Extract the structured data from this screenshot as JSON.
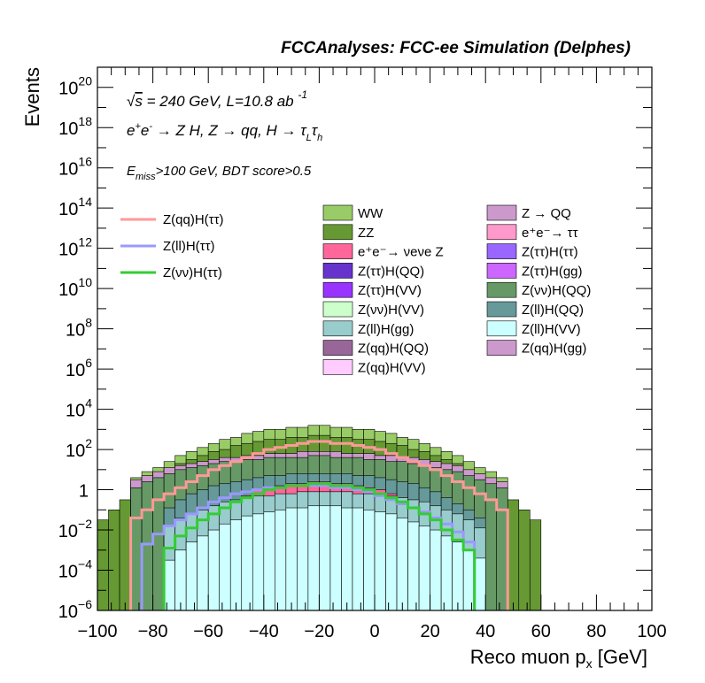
{
  "chart_data": {
    "type": "histogram",
    "title": "FCCAnalyses: FCC-ee Simulation (Delphes)",
    "xlabel": "Reco muon p_x [GeV]",
    "ylabel": "Events",
    "xlim": [
      -100,
      100
    ],
    "ylim": [
      1e-06,
      1e+21
    ],
    "yscale": "log",
    "x_ticks": [
      "−100",
      "−80",
      "−60",
      "−40",
      "−20",
      "0",
      "20",
      "40",
      "60",
      "80",
      "100"
    ],
    "y_ticks": [
      {
        "exp": -6,
        "label": "10",
        "sup": "−6"
      },
      {
        "exp": -4,
        "label": "10",
        "sup": "−4"
      },
      {
        "exp": -2,
        "label": "10",
        "sup": "−2"
      },
      {
        "exp": 0,
        "label": "1",
        "sup": ""
      },
      {
        "exp": 2,
        "label": "10",
        "sup": "2"
      },
      {
        "exp": 4,
        "label": "10",
        "sup": "4"
      },
      {
        "exp": 6,
        "label": "10",
        "sup": "6"
      },
      {
        "exp": 8,
        "label": "10",
        "sup": "8"
      },
      {
        "exp": 10,
        "label": "10",
        "sup": "10"
      },
      {
        "exp": 12,
        "label": "10",
        "sup": "12"
      },
      {
        "exp": 14,
        "label": "10",
        "sup": "14"
      },
      {
        "exp": 16,
        "label": "10",
        "sup": "16"
      },
      {
        "exp": 18,
        "label": "10",
        "sup": "18"
      },
      {
        "exp": 20,
        "label": "10",
        "sup": "20"
      }
    ],
    "annotations": {
      "energy_line": "√s = 240 GeV, L=10.8 ab⁻¹",
      "process_line": "e⁺e⁻ → Z H, Z → qq, H → τLτh",
      "cuts_line": "Emiss>100 GeV, BDT score>0.5"
    },
    "bin_edges_start": -100,
    "bin_width": 4,
    "stacked_layers_log10_top": [
      {
        "name": "Z(ll)H(VV)",
        "color": "#ccffff",
        "values": [
          null,
          null,
          null,
          null,
          null,
          null,
          -3.5,
          -3.0,
          -2.6,
          -2.3,
          -2.0,
          -1.7,
          -1.5,
          -1.3,
          -1.2,
          -1.1,
          -1.0,
          -0.9,
          -0.9,
          -0.8,
          -0.8,
          -0.8,
          -0.9,
          -0.9,
          -1.0,
          -1.1,
          -1.2,
          -1.4,
          -1.6,
          -1.8,
          -2.0,
          -2.3,
          -2.6,
          -3.0,
          -3.4,
          null,
          null,
          null,
          null,
          null,
          null,
          null,
          null,
          null,
          null,
          null,
          null,
          null,
          null,
          null
        ]
      },
      {
        "name": "Z(ll)H(gg)",
        "color": "#99cccc",
        "values": [
          null,
          null,
          null,
          null,
          null,
          null,
          -1.8,
          -1.4,
          -1.2,
          -1.0,
          -0.8,
          -0.6,
          -0.5,
          -0.4,
          -0.3,
          -0.3,
          -0.2,
          -0.2,
          -0.1,
          -0.1,
          -0.1,
          -0.1,
          -0.1,
          -0.2,
          -0.2,
          -0.3,
          -0.3,
          -0.4,
          -0.5,
          -0.6,
          -0.8,
          -1.0,
          -1.2,
          -1.5,
          -1.9,
          null,
          null,
          null,
          null,
          null,
          null,
          null,
          null,
          null,
          null,
          null,
          null,
          null,
          null,
          null
        ]
      },
      {
        "name": "e⁺e⁻→ νeνe Z",
        "color": "#ff6699",
        "values": [
          null,
          null,
          null,
          null,
          null,
          null,
          null,
          null,
          null,
          null,
          null,
          null,
          null,
          -0.3,
          0.0,
          0.1,
          0.2,
          0.3,
          0.3,
          0.4,
          0.4,
          0.3,
          0.3,
          0.2,
          0.1,
          0.0,
          -0.2,
          null,
          null,
          null,
          null,
          null,
          null,
          null,
          null,
          null,
          null,
          null,
          null,
          null,
          null,
          null,
          null,
          null,
          null,
          null,
          null,
          null,
          null,
          null
        ]
      },
      {
        "name": "Z(ll)H(QQ)",
        "color": "#669999",
        "values": [
          null,
          null,
          null,
          null,
          null,
          null,
          -0.9,
          -0.5,
          -0.2,
          0.0,
          0.2,
          0.3,
          0.4,
          0.5,
          0.6,
          0.7,
          0.7,
          0.8,
          0.8,
          0.8,
          0.8,
          0.8,
          0.8,
          0.7,
          0.7,
          0.6,
          0.5,
          0.4,
          0.3,
          0.1,
          -0.1,
          -0.4,
          -0.7,
          -1.0,
          -1.4,
          null,
          null,
          null,
          null,
          null,
          null,
          null,
          null,
          null,
          null,
          null,
          null,
          null,
          null,
          null
        ]
      },
      {
        "name": "Z(νν)H(QQ)",
        "color": "#669966",
        "values": [
          null,
          null,
          null,
          0.1,
          0.4,
          0.6,
          0.8,
          1.0,
          1.1,
          1.2,
          1.3,
          1.4,
          1.4,
          1.5,
          1.5,
          1.6,
          1.6,
          1.6,
          1.6,
          1.7,
          1.7,
          1.6,
          1.6,
          1.6,
          1.5,
          1.5,
          1.4,
          1.4,
          1.3,
          1.2,
          1.1,
          1.0,
          0.9,
          0.7,
          0.5,
          0.3,
          0.1,
          null,
          null,
          null,
          null,
          null,
          null,
          null,
          null,
          null,
          null,
          null,
          null,
          null
        ]
      },
      {
        "name": "Z(qq)H(gg)",
        "color": "#cc99cc",
        "values": [
          null,
          null,
          null,
          0.5,
          0.7,
          0.9,
          1.1,
          1.2,
          1.3,
          1.4,
          1.5,
          1.6,
          1.6,
          1.7,
          1.7,
          1.8,
          1.8,
          1.8,
          1.9,
          1.9,
          1.9,
          1.9,
          1.8,
          1.8,
          1.8,
          1.7,
          1.7,
          1.6,
          1.6,
          1.5,
          1.4,
          1.3,
          1.2,
          1.0,
          0.8,
          0.6,
          0.4,
          null,
          null,
          null,
          null,
          null,
          null,
          null,
          null,
          null,
          null,
          null,
          null,
          null
        ]
      },
      {
        "name": "ZZ",
        "color": "#669933",
        "values": [
          -1.5,
          -1.0,
          -0.5,
          0.3,
          0.6,
          0.8,
          1.0,
          1.3,
          1.5,
          1.7,
          1.9,
          2.0,
          2.2,
          2.3,
          2.4,
          2.5,
          2.5,
          2.6,
          2.6,
          2.7,
          2.7,
          2.6,
          2.6,
          2.5,
          2.5,
          2.4,
          2.3,
          2.2,
          2.0,
          1.9,
          1.7,
          1.5,
          1.3,
          1.0,
          0.8,
          0.5,
          0.2,
          -0.5,
          -1.0,
          -1.5,
          null,
          null,
          null,
          null,
          null,
          null,
          null,
          null,
          null,
          null
        ]
      },
      {
        "name": "WW",
        "color": "#99cc66",
        "values": [
          null,
          null,
          null,
          0.6,
          0.9,
          1.1,
          1.4,
          1.7,
          1.9,
          2.1,
          2.3,
          2.5,
          2.6,
          2.8,
          2.9,
          3.0,
          3.0,
          3.1,
          3.1,
          3.2,
          3.2,
          3.1,
          3.1,
          3.0,
          3.0,
          2.9,
          2.8,
          2.6,
          2.5,
          2.3,
          2.1,
          1.9,
          1.7,
          1.4,
          1.1,
          0.9,
          0.6,
          null,
          null,
          null,
          null,
          null,
          null,
          null,
          null,
          null,
          null,
          null,
          null,
          null
        ]
      }
    ],
    "signal_lines_log10": [
      {
        "name": "Z(qq)H(ττ)",
        "color": "#ff9999",
        "values": [
          null,
          null,
          null,
          -1.4,
          -1.0,
          -0.5,
          -0.2,
          0.1,
          0.4,
          0.7,
          1.0,
          1.2,
          1.4,
          1.6,
          1.8,
          2.0,
          2.1,
          2.2,
          2.3,
          2.4,
          2.4,
          2.3,
          2.3,
          2.2,
          2.1,
          2.0,
          1.8,
          1.6,
          1.4,
          1.2,
          1.0,
          0.7,
          0.4,
          0.1,
          -0.2,
          -0.5,
          -1.0,
          null,
          null,
          null,
          null,
          null,
          null,
          null,
          null,
          null,
          null,
          null,
          null,
          null
        ]
      },
      {
        "name": "Z(ll)H(ττ)",
        "color": "#9999ff",
        "values": [
          null,
          null,
          null,
          null,
          -2.7,
          -2.2,
          -1.8,
          -1.5,
          -1.2,
          -0.9,
          -0.6,
          -0.4,
          -0.2,
          -0.1,
          0.0,
          0.1,
          0.1,
          0.2,
          0.2,
          0.2,
          0.2,
          0.1,
          0.1,
          0.0,
          -0.1,
          -0.3,
          -0.5,
          -0.7,
          -0.9,
          -1.1,
          -1.4,
          -1.7,
          -2.1,
          -2.6,
          null,
          null,
          null,
          null,
          null,
          null,
          null,
          null,
          null,
          null,
          null,
          null,
          null,
          null,
          null,
          null
        ]
      },
      {
        "name": "Z(νν)H(ττ)",
        "color": "#33cc33",
        "values": [
          null,
          null,
          null,
          null,
          null,
          null,
          -2.9,
          -2.3,
          -1.9,
          -1.5,
          -1.2,
          -0.9,
          -0.6,
          -0.4,
          -0.2,
          0.0,
          0.1,
          0.2,
          0.2,
          0.3,
          0.3,
          0.2,
          0.2,
          0.1,
          0.0,
          -0.2,
          -0.4,
          -0.6,
          -0.9,
          -1.2,
          -1.5,
          -2.0,
          -2.5,
          -3.0,
          null,
          null,
          null,
          null,
          null,
          null,
          null,
          null,
          null,
          null,
          null,
          null,
          null,
          null,
          null,
          null
        ]
      }
    ],
    "legend_lines": [
      {
        "label": "Z(qq)H(ττ)",
        "color": "#ff9999"
      },
      {
        "label": "Z(ll)H(ττ)",
        "color": "#9999ff"
      },
      {
        "label": "Z(νν)H(ττ)",
        "color": "#33cc33"
      }
    ],
    "legend_col1": [
      {
        "label": "WW",
        "color": "#99cc66"
      },
      {
        "label": "ZZ",
        "color": "#669933"
      },
      {
        "label": "e⁺e⁻→ νeνe Z",
        "color": "#ff6699"
      },
      {
        "label": "Z(ττ)H(QQ)",
        "color": "#6633cc"
      },
      {
        "label": "Z(ττ)H(VV)",
        "color": "#9933ff"
      },
      {
        "label": "Z(νν)H(VV)",
        "color": "#ccffcc"
      },
      {
        "label": "Z(ll)H(gg)",
        "color": "#99cccc"
      },
      {
        "label": "Z(qq)H(QQ)",
        "color": "#996699"
      },
      {
        "label": "Z(qq)H(VV)",
        "color": "#ffccff"
      }
    ],
    "legend_col2": [
      {
        "label": "Z → QQ",
        "color": "#cc99cc"
      },
      {
        "label": "e⁺e⁻→ ττ",
        "color": "#ff99cc"
      },
      {
        "label": "Z(ττ)H(ττ)",
        "color": "#9966ff"
      },
      {
        "label": "Z(ττ)H(gg)",
        "color": "#cc66ff"
      },
      {
        "label": "Z(νν)H(QQ)",
        "color": "#669966"
      },
      {
        "label": "Z(ll)H(QQ)",
        "color": "#669999"
      },
      {
        "label": "Z(ll)H(VV)",
        "color": "#ccffff"
      },
      {
        "label": "Z(qq)H(gg)",
        "color": "#cc99cc"
      }
    ]
  }
}
